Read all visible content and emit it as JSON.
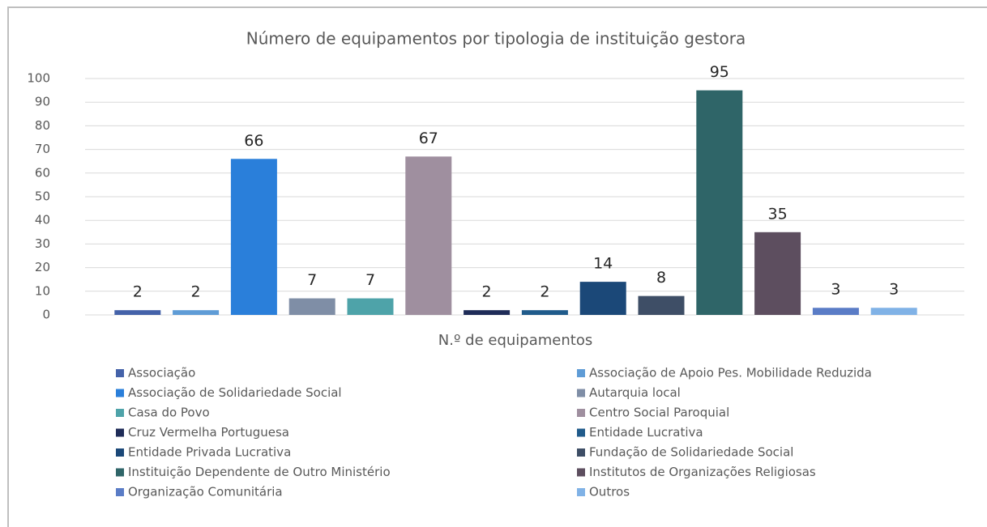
{
  "chart_data": {
    "type": "bar",
    "title": "Número de equipamentos por tipologia de instituição gestora",
    "categories": [
      "N.º de equipamentos"
    ],
    "series": [
      {
        "name": "Associação",
        "color": "#4462a9",
        "values": [
          2
        ]
      },
      {
        "name": "Associação de Apoio Pes. Mobilidade Reduzida",
        "color": "#5f9cd6",
        "values": [
          2
        ]
      },
      {
        "name": "Associação de Solidariedade Social",
        "color": "#2a7fda",
        "values": [
          66
        ]
      },
      {
        "name": "Autarquia local",
        "color": "#7f8ea6",
        "values": [
          7
        ]
      },
      {
        "name": "Casa do Povo",
        "color": "#4ea3a9",
        "values": [
          7
        ]
      },
      {
        "name": "Centro Social Paroquial",
        "color": "#9f8f9f",
        "values": [
          67
        ]
      },
      {
        "name": "Cruz Vermelha Portuguesa",
        "color": "#1f2c58",
        "values": [
          2
        ]
      },
      {
        "name": "Entidade Lucrativa",
        "color": "#205b8b",
        "values": [
          2
        ]
      },
      {
        "name": "Entidade Privada Lucrativa",
        "color": "#1b4878",
        "values": [
          14
        ]
      },
      {
        "name": "Fundação de Solidariedade Social",
        "color": "#3e4e66",
        "values": [
          8
        ]
      },
      {
        "name": "Instituição Dependente de Outro Ministério",
        "color": "#2f6568",
        "values": [
          95
        ]
      },
      {
        "name": "Institutos de Organizações Religiosas",
        "color": "#5d4e5f",
        "values": [
          35
        ]
      },
      {
        "name": "Organização Comunitária",
        "color": "#5a7cc6",
        "values": [
          3
        ]
      },
      {
        "name": "Outros",
        "color": "#80b2e6",
        "values": [
          3
        ]
      }
    ],
    "ylim": [
      0,
      100
    ],
    "yticks": [
      0,
      10,
      20,
      30,
      40,
      50,
      60,
      70,
      80,
      90,
      100
    ],
    "grid": true,
    "legend": "bottom"
  }
}
